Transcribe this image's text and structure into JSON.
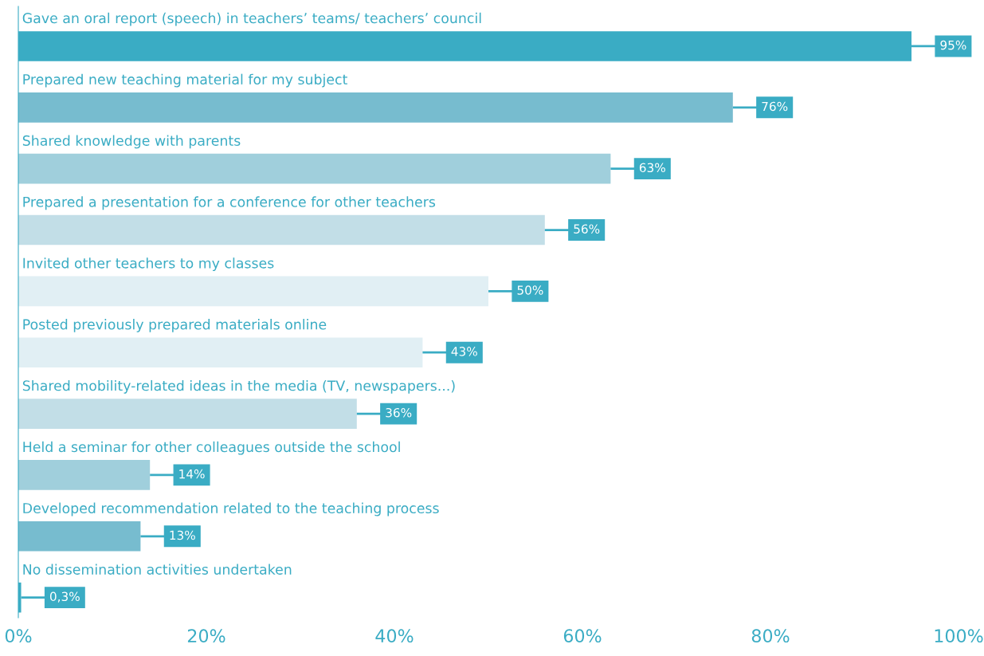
{
  "chart_data": {
    "type": "bar",
    "orientation": "horizontal",
    "categories": [
      "Gave an oral report (speech) in teachers’ teams/ teachers’ council",
      "Prepared new teaching material for my subject",
      "Shared knowledge with parents",
      "Prepared a presentation for a conference for other teachers",
      "Invited other teachers to my classes",
      "Posted previously prepared materials online",
      "Shared mobility-related ideas in the media (TV, newspapers...)",
      "Held a seminar for other colleagues outside the school",
      "Developed recommendation related to the teaching process",
      "No dissemination activities undertaken"
    ],
    "values": [
      95,
      76,
      63,
      56,
      50,
      43,
      36,
      14,
      13,
      0.3
    ],
    "value_labels": [
      "95%",
      "76%",
      "63%",
      "56%",
      "50%",
      "43%",
      "36%",
      "14%",
      "13%",
      "0,3%"
    ],
    "colors": [
      "#3aacc4",
      "#77bccf",
      "#a0cfdc",
      "#c2dee7",
      "#e1eff4",
      "#e1eff4",
      "#c2dee7",
      "#a0cfdc",
      "#77bccf",
      "#3aacc4"
    ],
    "xlim": [
      0,
      100
    ],
    "xticks": [
      {
        "value": 0,
        "label": "0%"
      },
      {
        "value": 20,
        "label": "20%"
      },
      {
        "value": 40,
        "label": "40%"
      },
      {
        "value": 60,
        "label": "60%"
      },
      {
        "value": 80,
        "label": "80%"
      },
      {
        "value": 100,
        "label": "100%"
      }
    ],
    "tick_labels": "x",
    "grid": false,
    "legend": false
  }
}
